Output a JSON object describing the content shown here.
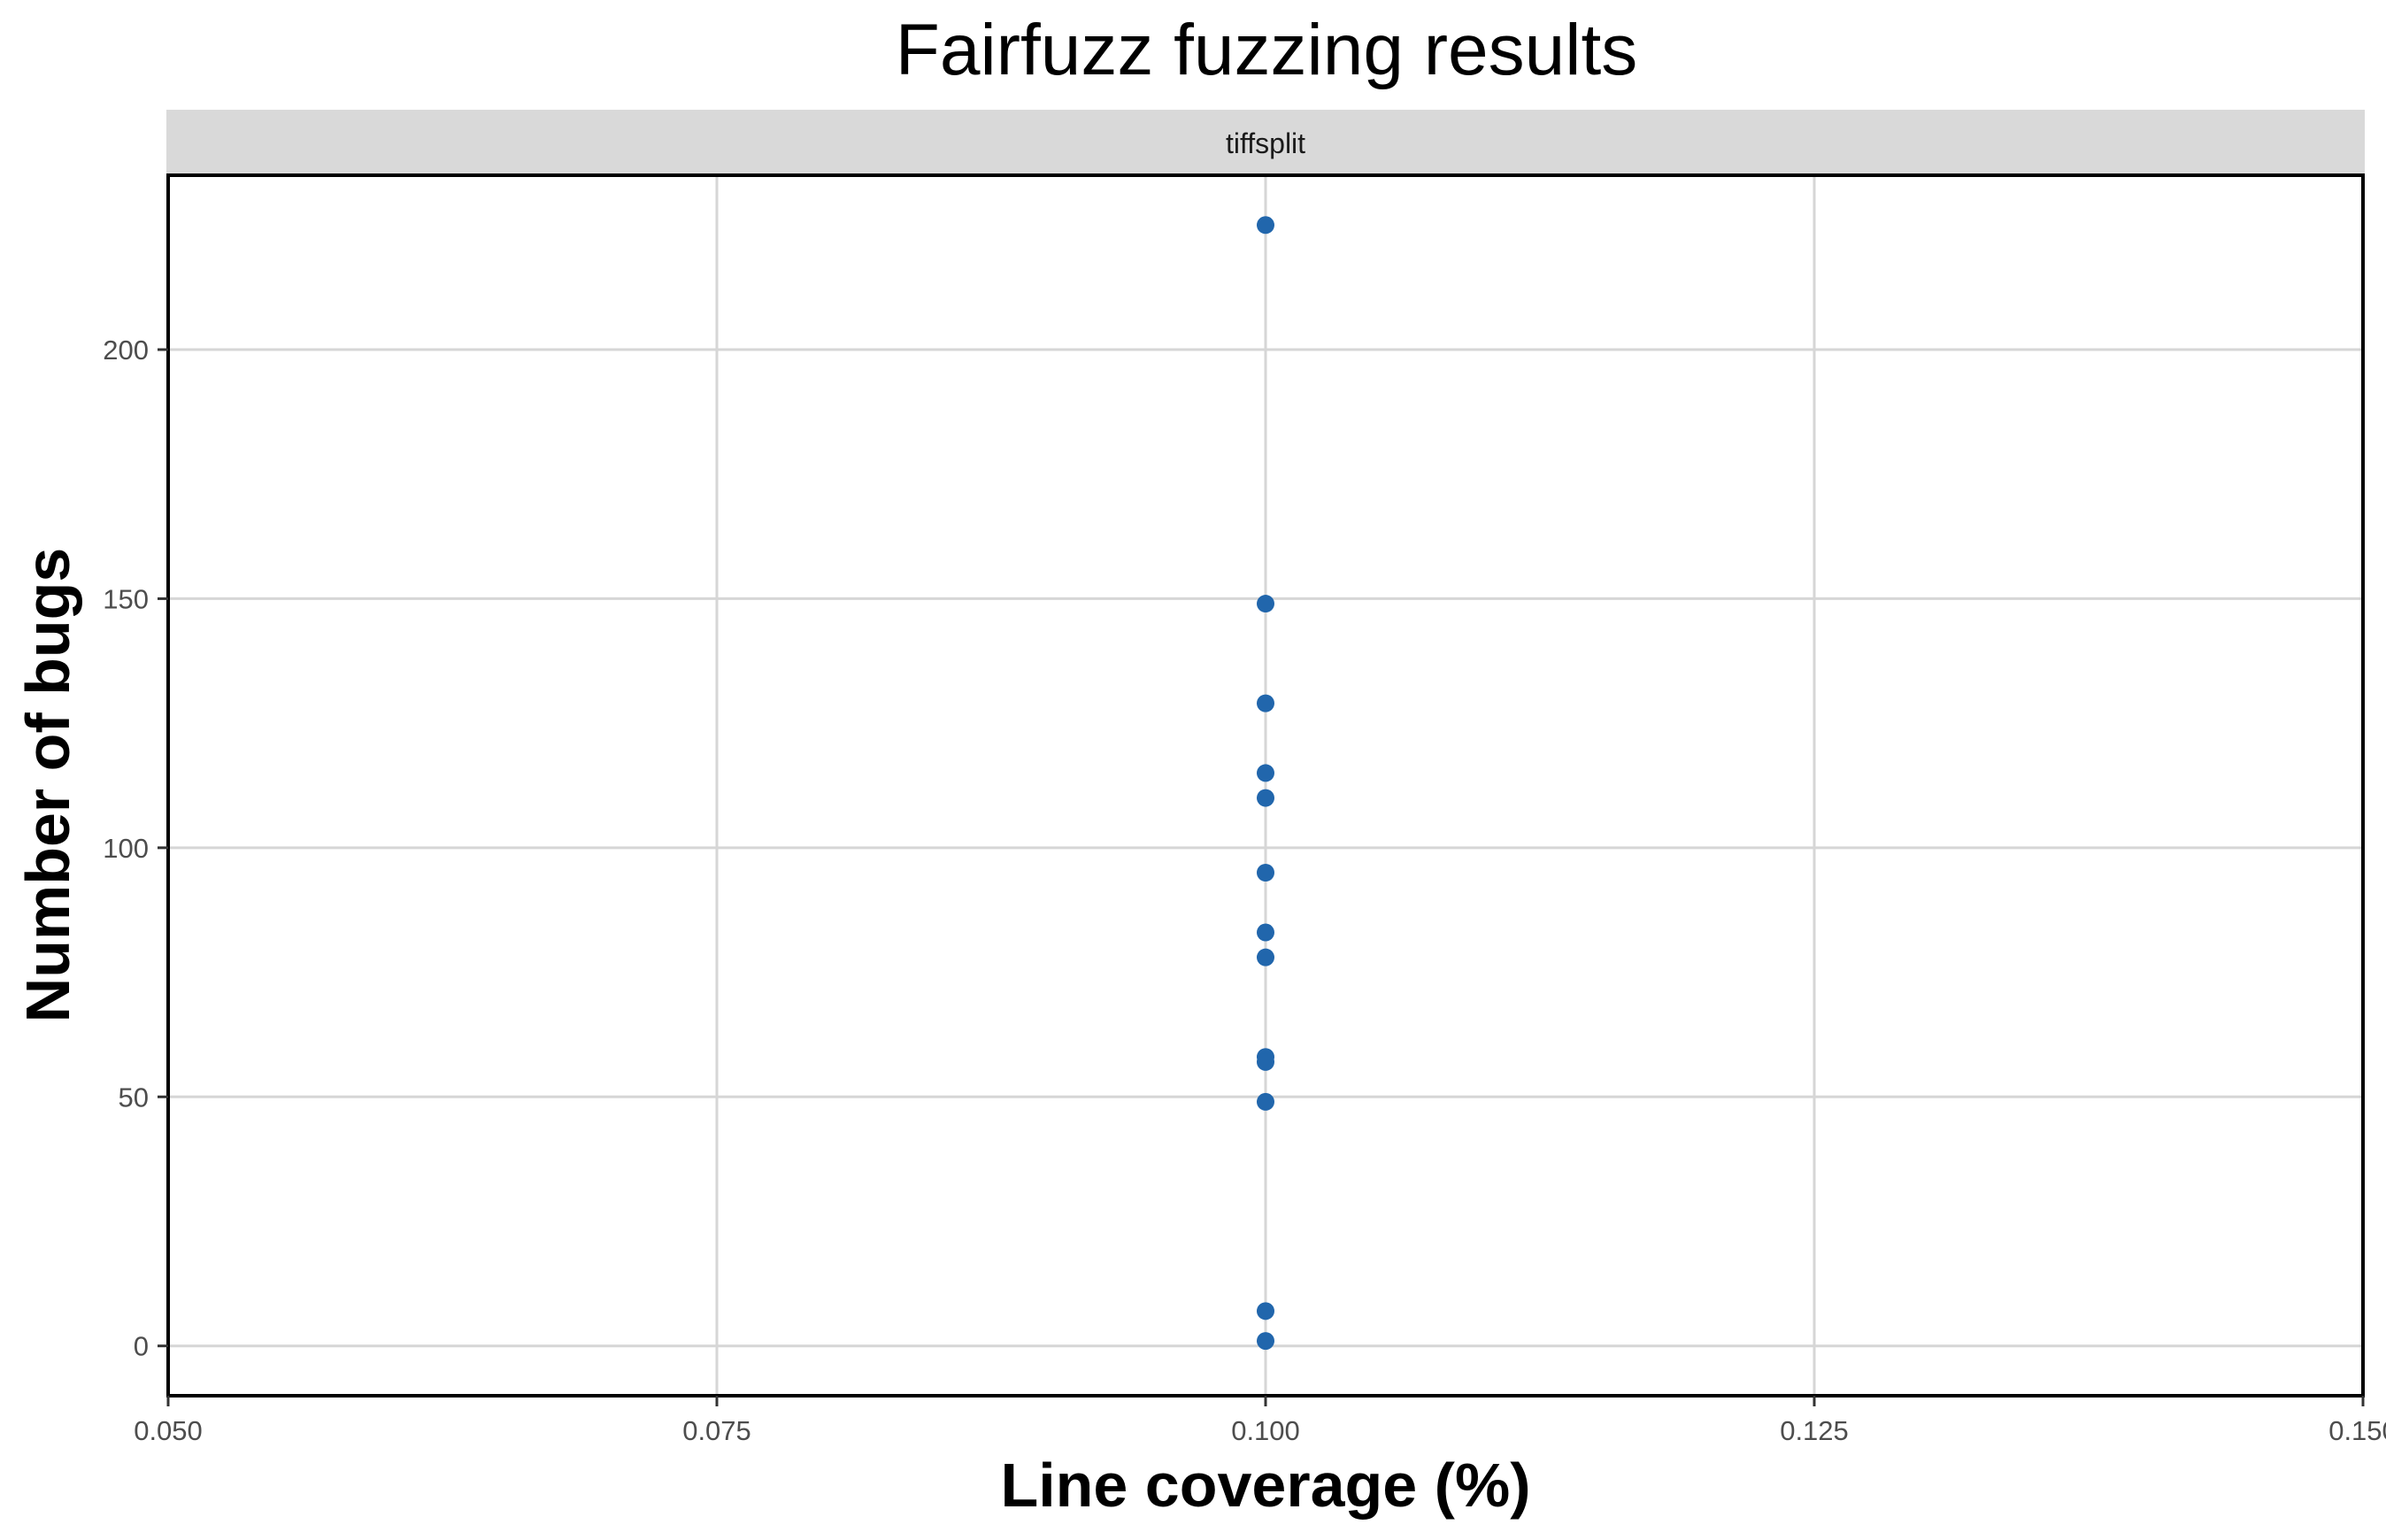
{
  "chart_data": {
    "type": "scatter",
    "title": "Fairfuzz fuzzing results",
    "facet_label": "tiffsplit",
    "xlabel": "Line coverage (%)",
    "ylabel": "Number of bugs",
    "xlim": [
      0.05,
      0.15
    ],
    "ylim": [
      -10,
      235
    ],
    "x_ticks": [
      0.05,
      0.075,
      0.1,
      0.125,
      0.15
    ],
    "x_tick_labels": [
      "0.050",
      "0.075",
      "0.100",
      "0.125",
      "0.150"
    ],
    "y_ticks": [
      0,
      50,
      100,
      150,
      200
    ],
    "y_tick_labels": [
      "0",
      "50",
      "100",
      "150",
      "200"
    ],
    "grid": true,
    "point_color": "#2166ac",
    "series": [
      {
        "x": [
          0.1,
          0.1,
          0.1,
          0.1,
          0.1,
          0.1,
          0.1,
          0.1,
          0.1,
          0.1,
          0.1,
          0.1,
          0.1
        ],
        "y": [
          225,
          149,
          129,
          115,
          110,
          95,
          83,
          78,
          58,
          57,
          49,
          7,
          1
        ]
      }
    ]
  }
}
